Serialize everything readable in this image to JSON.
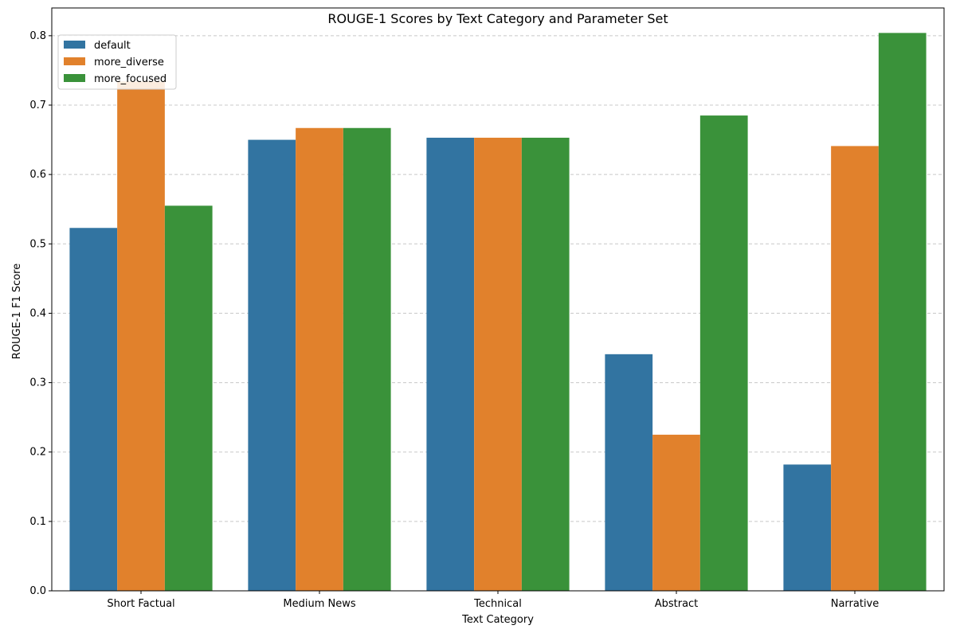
{
  "chart_data": {
    "type": "bar",
    "title": "ROUGE-1 Scores by Text Category and Parameter Set",
    "xlabel": "Text Category",
    "ylabel": "ROUGE-1 F1 Score",
    "categories": [
      "Short Factual",
      "Medium News",
      "Technical",
      "Abstract",
      "Narrative"
    ],
    "series": [
      {
        "name": "default",
        "color": "#3274a1",
        "values": [
          0.523,
          0.65,
          0.653,
          0.341,
          0.182
        ]
      },
      {
        "name": "more_diverse",
        "color": "#e1812c",
        "values": [
          0.734,
          0.667,
          0.653,
          0.225,
          0.641
        ]
      },
      {
        "name": "more_focused",
        "color": "#3a923a",
        "values": [
          0.555,
          0.667,
          0.653,
          0.685,
          0.804
        ]
      }
    ],
    "ylim": [
      0,
      0.84
    ],
    "yticks": [
      0.0,
      0.1,
      0.2,
      0.3,
      0.4,
      0.5,
      0.6,
      0.7,
      0.8
    ],
    "ytick_labels": [
      "0.0",
      "0.1",
      "0.2",
      "0.3",
      "0.4",
      "0.5",
      "0.6",
      "0.7",
      "0.8"
    ],
    "grid": "y-dashed",
    "legend_position": "top-left"
  }
}
